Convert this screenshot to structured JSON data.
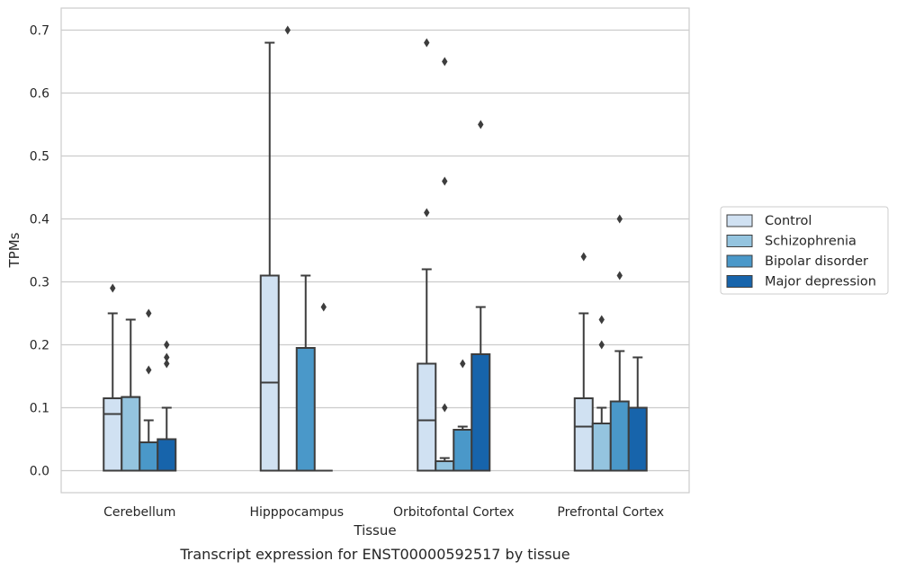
{
  "chart_data": {
    "type": "box",
    "xlabel": "Tissue",
    "ylabel": "TPMs",
    "caption": "Transcript expression for ENST00000592517 by tissue",
    "ylim": [
      -0.035,
      0.735
    ],
    "yticks": [
      "0.0",
      "0.1",
      "0.2",
      "0.3",
      "0.4",
      "0.5",
      "0.6",
      "0.7"
    ],
    "grid": "horizontal",
    "legend_position": "right",
    "categories": [
      "Cerebellum",
      "Hipppocampus",
      "Orbitofontal Cortex",
      "Prefrontal Cortex"
    ],
    "series": [
      {
        "name": "Control",
        "color": "#d0e1f2",
        "boxes": [
          {
            "q1": 0.0,
            "median": 0.09,
            "q3": 0.115,
            "whisker_low": 0.0,
            "whisker_high": 0.25,
            "outliers": [
              0.29
            ]
          },
          {
            "q1": 0.0,
            "median": 0.14,
            "q3": 0.31,
            "whisker_low": 0.0,
            "whisker_high": 0.68,
            "outliers": []
          },
          {
            "q1": 0.0,
            "median": 0.08,
            "q3": 0.17,
            "whisker_low": 0.0,
            "whisker_high": 0.32,
            "outliers": [
              0.41,
              0.68
            ]
          },
          {
            "q1": 0.0,
            "median": 0.07,
            "q3": 0.115,
            "whisker_low": 0.0,
            "whisker_high": 0.25,
            "outliers": [
              0.34
            ]
          }
        ]
      },
      {
        "name": "Schizophrenia",
        "color": "#94c4df",
        "boxes": [
          {
            "q1": 0.0,
            "median": 0.117,
            "q3": 0.117,
            "whisker_low": 0.0,
            "whisker_high": 0.24,
            "outliers": []
          },
          {
            "q1": 0.0,
            "median": 0.0,
            "q3": 0.0,
            "whisker_low": 0.0,
            "whisker_high": 0.0,
            "outliers": [
              0.7
            ]
          },
          {
            "q1": 0.0,
            "median": 0.015,
            "q3": 0.015,
            "whisker_low": 0.0,
            "whisker_high": 0.02,
            "outliers": [
              0.1,
              0.46,
              0.65
            ]
          },
          {
            "q1": 0.0,
            "median": 0.075,
            "q3": 0.075,
            "whisker_low": 0.0,
            "whisker_high": 0.1,
            "outliers": [
              0.2,
              0.24
            ]
          }
        ]
      },
      {
        "name": "Bipolar disorder",
        "color": "#4a98c9",
        "boxes": [
          {
            "q1": 0.0,
            "median": 0.045,
            "q3": 0.045,
            "whisker_low": 0.0,
            "whisker_high": 0.08,
            "outliers": [
              0.16,
              0.25
            ]
          },
          {
            "q1": 0.0,
            "median": 0.195,
            "q3": 0.195,
            "whisker_low": 0.0,
            "whisker_high": 0.31,
            "outliers": []
          },
          {
            "q1": 0.0,
            "median": 0.065,
            "q3": 0.065,
            "whisker_low": 0.0,
            "whisker_high": 0.07,
            "outliers": [
              0.17
            ]
          },
          {
            "q1": 0.0,
            "median": 0.11,
            "q3": 0.11,
            "whisker_low": 0.0,
            "whisker_high": 0.19,
            "outliers": [
              0.31,
              0.4
            ]
          }
        ]
      },
      {
        "name": "Major depression",
        "color": "#1764ab",
        "boxes": [
          {
            "q1": 0.0,
            "median": 0.05,
            "q3": 0.05,
            "whisker_low": 0.0,
            "whisker_high": 0.1,
            "outliers": [
              0.17,
              0.18,
              0.2
            ]
          },
          {
            "q1": 0.0,
            "median": 0.0,
            "q3": 0.0,
            "whisker_low": 0.0,
            "whisker_high": 0.0,
            "outliers": [
              0.26
            ]
          },
          {
            "q1": 0.0,
            "median": 0.185,
            "q3": 0.185,
            "whisker_low": 0.0,
            "whisker_high": 0.26,
            "outliers": [
              0.55
            ]
          },
          {
            "q1": 0.0,
            "median": 0.1,
            "q3": 0.1,
            "whisker_low": 0.0,
            "whisker_high": 0.18,
            "outliers": []
          }
        ]
      }
    ]
  }
}
